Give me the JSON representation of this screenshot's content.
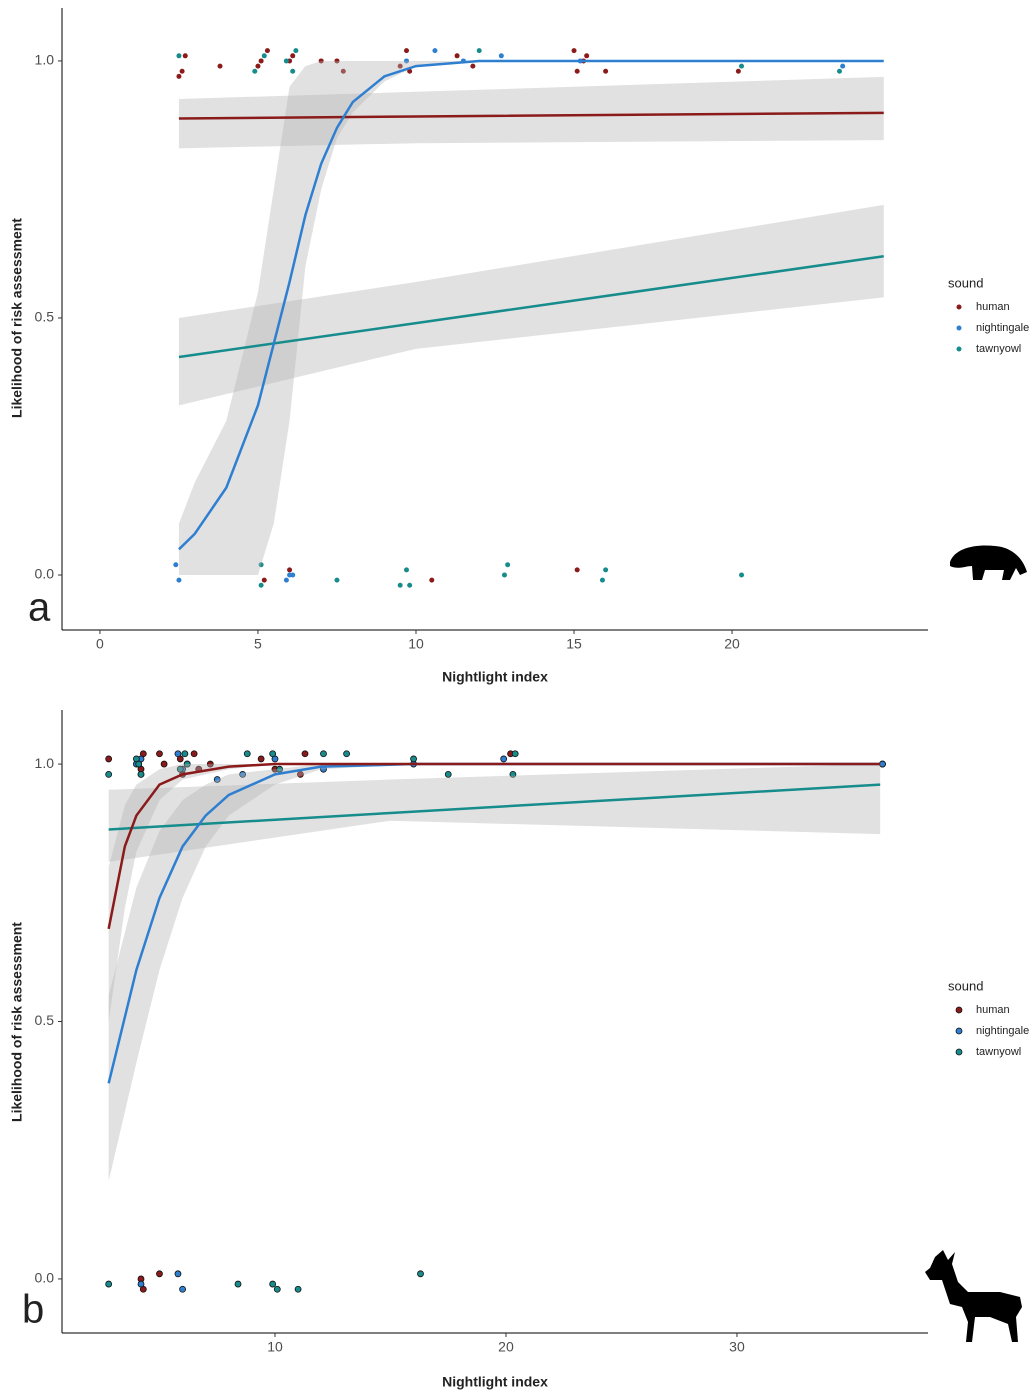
{
  "chart_data": [
    {
      "type": "scatter",
      "panel_label": "a",
      "xlabel": "Nightlight index",
      "ylabel": "Likelihood of risk assessment",
      "xlim": [
        -1.2,
        26.2
      ],
      "ylim": [
        -0.107,
        1.103
      ],
      "xticks": [
        0,
        5,
        10,
        15,
        20
      ],
      "yticks": [
        {
          "value": 0,
          "label": "0.0"
        },
        {
          "value": 0.5,
          "label": "0.5"
        },
        {
          "value": 1,
          "label": "1.0"
        }
      ],
      "legend_title": "sound",
      "series": [
        {
          "name": "human",
          "color": "#8b1a1a",
          "x": [
            2.5,
            2.6,
            2.7,
            3.8,
            5,
            5.1,
            5.3,
            6,
            6.1,
            7,
            7.5,
            7.7,
            9.5,
            9.7,
            9.8,
            11.3,
            11.8,
            15,
            15.1,
            15.3,
            15.4,
            16,
            20.2,
            10.5,
            5.2,
            6,
            15.1
          ],
          "values": [
            0.97,
            0.98,
            1.01,
            0.99,
            0.99,
            1.0,
            1.02,
            1.0,
            1.01,
            1.0,
            1.0,
            0.98,
            0.99,
            1.02,
            0.98,
            1.01,
            0.99,
            1.02,
            0.98,
            1.0,
            1.01,
            0.98,
            0.98,
            -0.01,
            -0.01,
            0.01,
            0.01
          ]
        },
        {
          "name": "nightingale",
          "color": "#2f7fd1",
          "x": [
            2.4,
            2.5,
            5.9,
            6.0,
            6.1,
            9.7,
            10.6,
            12.7,
            15.2,
            23.5,
            11.5
          ],
          "values": [
            0.02,
            -0.01,
            -0.01,
            0,
            0,
            1.0,
            1.02,
            1.01,
            1.0,
            0.99,
            1.0
          ]
        },
        {
          "name": "tawnyowl",
          "color": "#178c8c",
          "x": [
            2.5,
            4.9,
            5.1,
            5.9,
            6.1,
            6.2,
            7.5,
            9.5,
            9.7,
            9.8,
            12.0,
            12.9,
            12.8,
            15.9,
            16.0,
            20.3,
            23.4,
            20.3,
            5.1,
            5.2
          ],
          "values": [
            1.01,
            0.98,
            -0.02,
            1.0,
            0.98,
            1.02,
            -0.01,
            -0.02,
            0.01,
            -0.02,
            1.02,
            0.02,
            0.0,
            -0.01,
            0.01,
            0.0,
            0.98,
            0.99,
            0.02,
            1.01
          ]
        }
      ],
      "fits": [
        {
          "color": "#8b1a1a",
          "x": [
            2.5,
            10,
            24.8
          ],
          "values": [
            0.888,
            0.892,
            0.899
          ],
          "lower": [
            0.83,
            0.84,
            0.846
          ],
          "upper": [
            0.926,
            0.94,
            0.969
          ]
        },
        {
          "color": "#178c8c",
          "x": [
            2.5,
            10,
            24.8
          ],
          "values": [
            0.424,
            0.49,
            0.62
          ],
          "lower": [
            0.33,
            0.44,
            0.54
          ],
          "upper": [
            0.5,
            0.57,
            0.72
          ]
        },
        {
          "color": "#2f7fd1",
          "x": [
            2.5,
            3,
            4,
            5,
            5.5,
            6,
            6.5,
            7,
            7.5,
            8,
            9,
            10,
            12,
            24.8
          ],
          "values": [
            0.05,
            0.08,
            0.17,
            0.33,
            0.45,
            0.57,
            0.7,
            0.8,
            0.87,
            0.92,
            0.97,
            0.99,
            1.0,
            1.0
          ],
          "lower": [
            0,
            0,
            0,
            0,
            0.1,
            0.3,
            0.6,
            0.75,
            0.85,
            0.9,
            0.96,
            0.99,
            1,
            1
          ],
          "upper": [
            0.1,
            0.18,
            0.3,
            0.55,
            0.75,
            0.95,
            0.99,
            1,
            1,
            1,
            1,
            1,
            1,
            1
          ]
        }
      ]
    },
    {
      "type": "scatter",
      "panel_label": "b",
      "xlabel": "Nightlight index",
      "ylabel": "Likelihood of risk assessment",
      "xlim": [
        0.78,
        38.27
      ],
      "ylim": [
        -0.105,
        1.105
      ],
      "xticks": [
        10,
        20,
        30
      ],
      "yticks": [
        {
          "value": 0,
          "label": "0.0"
        },
        {
          "value": 0.5,
          "label": "0.5"
        },
        {
          "value": 1,
          "label": "1.0"
        }
      ],
      "legend_title": "sound",
      "series": [
        {
          "name": "human",
          "color": "#8b1a1a",
          "x": [
            2.8,
            4.1,
            4.2,
            4.3,
            4.2,
            5.0,
            5.2,
            5.9,
            6.0,
            6.5,
            6.7,
            7.2,
            9.4,
            10.0,
            11.3,
            11.1,
            20.2,
            36.3,
            5.0,
            4.2,
            4.3
          ],
          "values": [
            1.01,
            1.0,
            0.99,
            1.02,
            0.98,
            1.02,
            1.0,
            1.01,
            0.98,
            1.02,
            0.99,
            1.0,
            1.01,
            0.99,
            1.02,
            0.98,
            1.02,
            1.0,
            0.01,
            0.0,
            -0.02
          ]
        },
        {
          "name": "nightingale",
          "color": "#2f7fd1",
          "x": [
            4.0,
            4.2,
            5.8,
            6.0,
            6.2,
            7.5,
            8.6,
            10.0,
            12.1,
            16.0,
            19.9,
            36.3,
            4.2,
            5.8,
            6.0
          ],
          "values": [
            1.0,
            1.01,
            1.02,
            0.99,
            1.0,
            0.97,
            0.98,
            1.01,
            0.99,
            1.0,
            1.01,
            1.0,
            -0.01,
            0.01,
            -0.02
          ]
        },
        {
          "name": "tawnyowl",
          "color": "#178c8c",
          "x": [
            2.8,
            4.0,
            4.2,
            5.9,
            6.2,
            8.8,
            9.9,
            10.2,
            12.1,
            13.1,
            16.0,
            17.5,
            20.3,
            20.4,
            2.8,
            8.4,
            9.9,
            10.1,
            11.0,
            16.3,
            4.1,
            6.1
          ],
          "values": [
            0.98,
            1.01,
            0.98,
            0.99,
            1.0,
            1.02,
            1.02,
            0.99,
            1.02,
            1.02,
            1.01,
            0.98,
            0.98,
            1.02,
            -0.01,
            -0.01,
            -0.01,
            -0.02,
            -0.02,
            0.01,
            1.0,
            1.02
          ]
        }
      ],
      "fits": [
        {
          "color": "#178c8c",
          "x": [
            2.8,
            15,
            36.2
          ],
          "values": [
            0.873,
            0.905,
            0.96
          ],
          "lower": [
            0.81,
            0.89,
            0.864
          ],
          "upper": [
            0.95,
            0.97,
            1.0
          ]
        },
        {
          "color": "#2f7fd1",
          "x": [
            2.8,
            4,
            5,
            6,
            7,
            8,
            10,
            12,
            16,
            36.2
          ],
          "values": [
            0.38,
            0.6,
            0.74,
            0.84,
            0.9,
            0.94,
            0.98,
            0.995,
            1,
            1
          ],
          "lower": [
            0.19,
            0.42,
            0.6,
            0.74,
            0.84,
            0.9,
            0.96,
            0.99,
            1,
            1
          ],
          "upper": [
            0.55,
            0.76,
            0.87,
            0.93,
            0.96,
            0.98,
            0.99,
            1,
            1,
            1
          ]
        },
        {
          "color": "#8b1a1a",
          "x": [
            2.8,
            3.5,
            4,
            5,
            6,
            8,
            10,
            36.2
          ],
          "values": [
            0.68,
            0.84,
            0.9,
            0.96,
            0.98,
            0.995,
            1,
            1
          ],
          "lower": [
            0.5,
            0.72,
            0.83,
            0.93,
            0.97,
            0.99,
            1,
            1
          ],
          "upper": [
            0.8,
            0.92,
            0.96,
            0.99,
            1,
            1,
            1,
            1
          ]
        }
      ]
    }
  ]
}
